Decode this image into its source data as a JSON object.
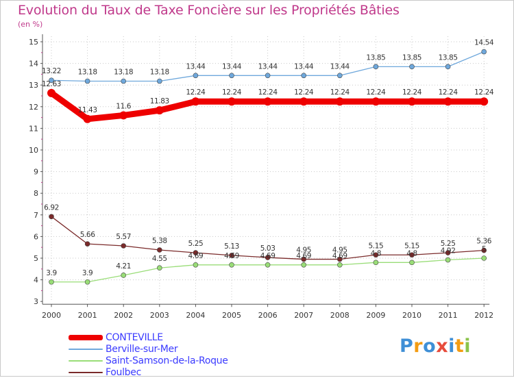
{
  "chart_data": {
    "type": "line",
    "title": "Evolution du Taux de Taxe Foncière sur les Propriétés Bâties",
    "ylabel": "(en %)",
    "xlabel": "",
    "ylim": [
      3,
      15
    ],
    "yticks": [
      3,
      4,
      5,
      6,
      7,
      8,
      9,
      10,
      11,
      12,
      13,
      14,
      15
    ],
    "categories": [
      "2000",
      "2001",
      "2002",
      "2003",
      "2004",
      "2005",
      "2006",
      "2007",
      "2008",
      "2009",
      "2010",
      "2011",
      "2012"
    ],
    "series": [
      {
        "name": "CONTEVILLE",
        "color": "#ee0000",
        "values": [
          12.63,
          11.43,
          11.6,
          11.83,
          12.24,
          12.24,
          12.24,
          12.24,
          12.24,
          12.24,
          12.24,
          12.24,
          12.24
        ],
        "labels": [
          "12.63",
          "11.43",
          "11.6",
          "11.83",
          "12.24",
          "12.24",
          "12.24",
          "12.24",
          "12.24",
          "12.24",
          "12.24",
          "12.24",
          "12.24"
        ]
      },
      {
        "name": "Berville-sur-Mer",
        "color": "#6fa8dc",
        "values": [
          13.22,
          13.18,
          13.18,
          13.18,
          13.44,
          13.44,
          13.44,
          13.44,
          13.44,
          13.85,
          13.85,
          13.85,
          14.54
        ],
        "labels": [
          "13.22",
          "13.18",
          "13.18",
          "13.18",
          "13.44",
          "13.44",
          "13.44",
          "13.44",
          "13.44",
          "13.85",
          "13.85",
          "13.85",
          "14.54"
        ]
      },
      {
        "name": "Saint-Samson-de-la-Roque",
        "color": "#99dd77",
        "values": [
          3.9,
          3.9,
          4.21,
          4.55,
          4.69,
          4.69,
          4.69,
          4.69,
          4.69,
          4.8,
          4.8,
          4.92,
          5.0
        ],
        "labels": [
          "3.9",
          "3.9",
          "4.21",
          "4.55",
          "4.69",
          "4.69",
          "4.69",
          "4.69",
          "4.69",
          "4.8",
          "4.8",
          "4.92",
          "5"
        ]
      },
      {
        "name": "Foulbec",
        "color": "#7a2a2a",
        "values": [
          6.92,
          5.66,
          5.57,
          5.38,
          5.25,
          5.13,
          5.03,
          4.95,
          4.95,
          5.15,
          5.15,
          5.25,
          5.36
        ],
        "labels": [
          "6.92",
          "5.66",
          "5.57",
          "5.38",
          "5.25",
          "5.13",
          "5.03",
          "4.95",
          "4.95",
          "5.15",
          "5.15",
          "5.25",
          "5.36"
        ]
      }
    ]
  },
  "brand": {
    "letters": [
      "P",
      "r",
      "o",
      "x",
      "i",
      "t",
      "i"
    ],
    "colors": [
      "#3f8fd6",
      "#f39c12",
      "#3f8fd6",
      "#e74c3c",
      "#3f8fd6",
      "#f39c12",
      "#8bc34a"
    ]
  }
}
